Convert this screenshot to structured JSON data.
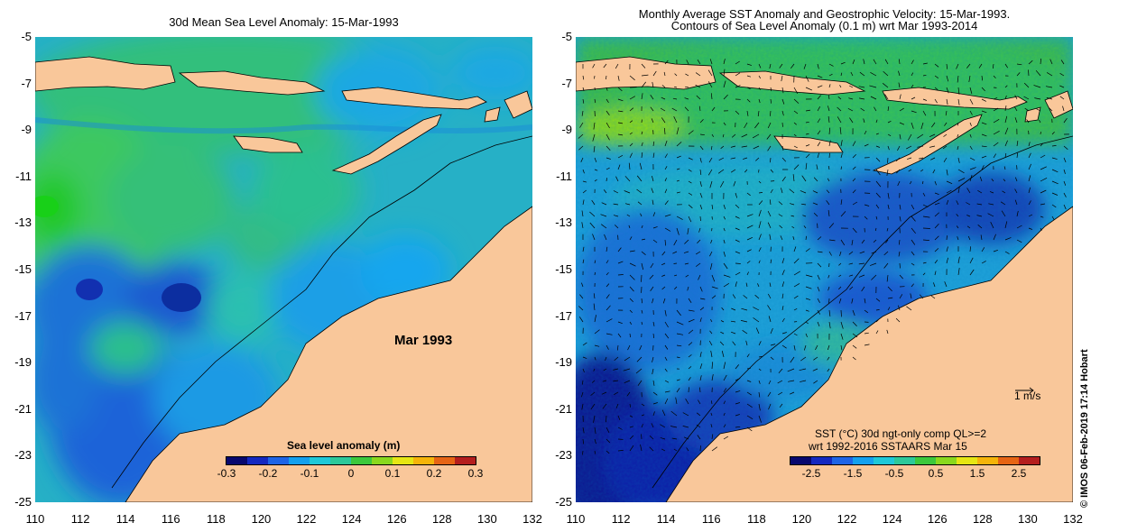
{
  "left_panel": {
    "title": "30d Mean Sea Level Anomaly: 15-Mar-1993",
    "month_label": "Mar 1993",
    "colorbar": {
      "title": "Sea level anomaly (m)",
      "ticks": [
        "-0.3",
        "-0.2",
        "-0.1",
        "0",
        "0.1",
        "0.2",
        "0.3"
      ],
      "colors": [
        "#08086e",
        "#1428c0",
        "#1e64e6",
        "#14a0ee",
        "#1ec8d8",
        "#2cc89a",
        "#3cc83c",
        "#8ad81e",
        "#e6e614",
        "#f5b40a",
        "#e66414",
        "#b41e1e"
      ]
    }
  },
  "right_panel": {
    "title_line1": "Monthly Average SST Anomaly  and Geostrophic Velocity: 15-Mar-1993.",
    "title_line2": "Contours of Sea Level Anomaly (0.1 m) wrt Mar 1993-2014",
    "legend_line1": "SST (°C) 30d ngt-only comp QL>=2",
    "legend_line2": "wrt 1992-2016 SSTAARS Mar 15",
    "velocity_scale": "1 m/s",
    "colorbar": {
      "ticks": [
        "-2.5",
        "-1.5",
        "-0.5",
        "0.5",
        "1.5",
        "2.5"
      ],
      "colors": [
        "#08086e",
        "#1428c0",
        "#1e64e6",
        "#14a0ee",
        "#1ec8d8",
        "#2cc89a",
        "#3cc83c",
        "#8ad81e",
        "#e6e614",
        "#f5b40a",
        "#e66414",
        "#b41e1e"
      ]
    }
  },
  "axes": {
    "lat_ticks": [
      "-5",
      "-7",
      "-9",
      "-11",
      "-13",
      "-15",
      "-17",
      "-19",
      "-21",
      "-23",
      "-25"
    ],
    "lon_ticks": [
      "110",
      "112",
      "114",
      "116",
      "118",
      "120",
      "122",
      "124",
      "126",
      "128",
      "130",
      "132"
    ]
  },
  "credit": "© IMOS 06-Feb-2019 17:14 Hobart",
  "colors": {
    "land": "#f9c79a",
    "sla_high": "#3cc850",
    "sla_mid": "#1eb4d2",
    "sla_low": "#1e46c8",
    "sst_deep": "#0a1a90"
  }
}
